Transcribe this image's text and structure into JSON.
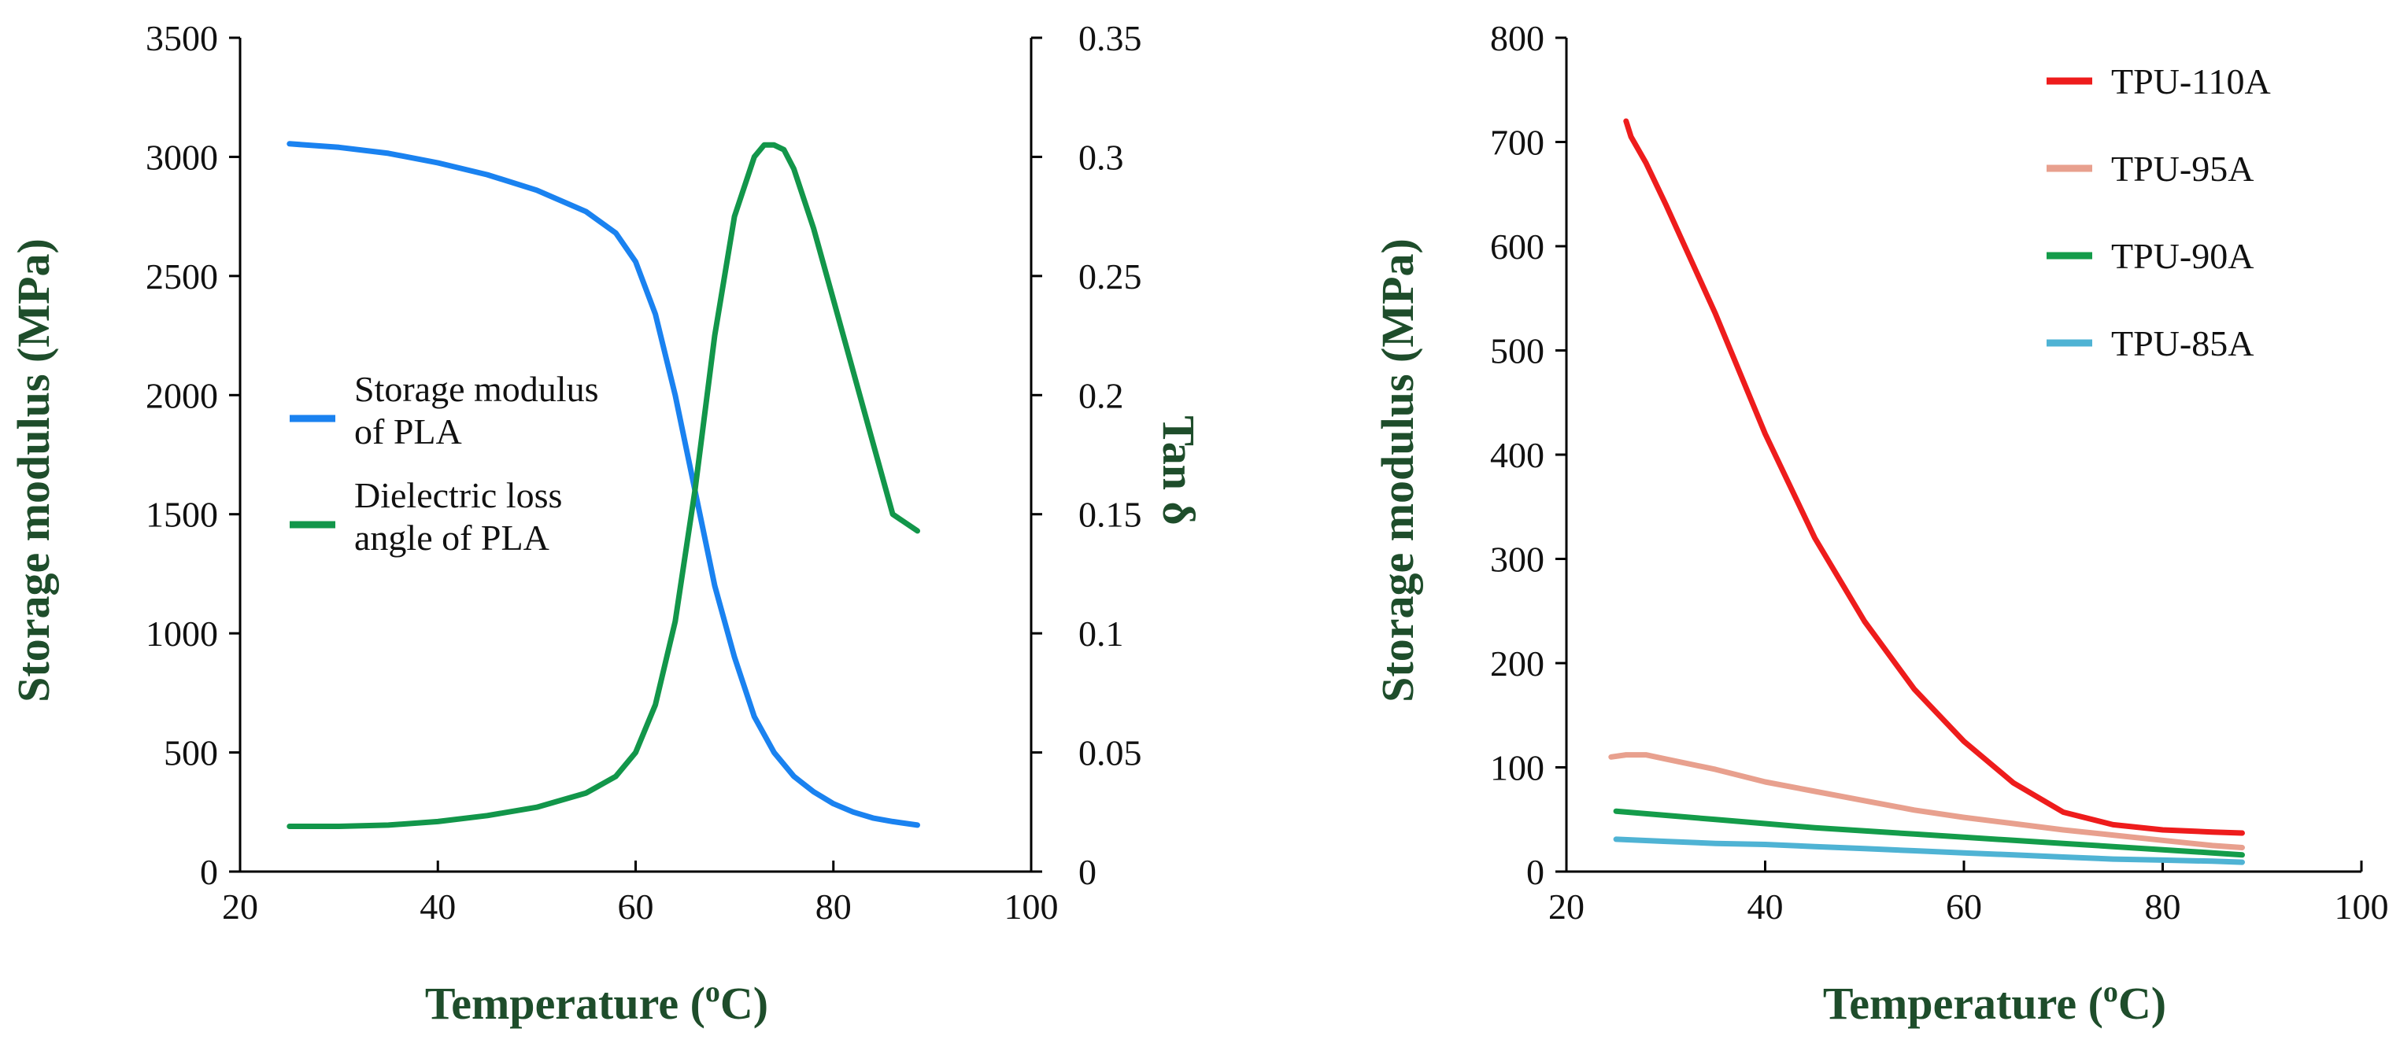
{
  "chart_data": [
    {
      "type": "line",
      "xlabel": "Temperature (oC)",
      "xlabel_main": "Temperature (",
      "xlabel_sup": "o",
      "xlabel_tail": "C)",
      "ylabel": "Storage modulus (MPa)",
      "y2label": "Tan δ",
      "xlim": [
        20,
        100
      ],
      "ylim": [
        0,
        3500
      ],
      "y2lim": [
        0,
        0.35
      ],
      "x_ticks": [
        20,
        40,
        60,
        80,
        100
      ],
      "y_ticks": [
        0,
        500,
        1000,
        1500,
        2000,
        2500,
        3000,
        3500
      ],
      "y2_ticks": [
        0,
        0.05,
        0.1,
        0.15,
        0.2,
        0.25,
        0.3,
        0.35
      ],
      "legend_position": "center-left",
      "series": [
        {
          "name": "Storage modulus of PLA",
          "legend_lines": [
            "Storage modulus",
            "of PLA"
          ],
          "color": "#1a82f0",
          "axis": "left",
          "x": [
            25,
            30,
            35,
            40,
            45,
            50,
            55,
            58,
            60,
            62,
            64,
            66,
            68,
            70,
            72,
            74,
            76,
            78,
            80,
            82,
            84,
            86,
            88.5
          ],
          "y": [
            3055,
            3040,
            3015,
            2975,
            2925,
            2860,
            2770,
            2680,
            2560,
            2340,
            2000,
            1600,
            1200,
            900,
            650,
            500,
            400,
            335,
            285,
            250,
            225,
            210,
            195
          ]
        },
        {
          "name": "Dielectric loss angle of PLA",
          "legend_lines": [
            "Dielectric loss",
            "angle of PLA"
          ],
          "color": "#12964a",
          "axis": "right",
          "x": [
            25,
            30,
            35,
            40,
            45,
            50,
            55,
            58,
            60,
            62,
            64,
            66,
            68,
            70,
            72,
            73,
            74,
            75,
            76,
            78,
            80,
            82,
            84,
            86,
            88.5
          ],
          "y": [
            0.019,
            0.019,
            0.0195,
            0.021,
            0.0235,
            0.027,
            0.033,
            0.04,
            0.05,
            0.07,
            0.105,
            0.16,
            0.225,
            0.275,
            0.3,
            0.305,
            0.305,
            0.303,
            0.295,
            0.27,
            0.24,
            0.21,
            0.18,
            0.15,
            0.143
          ]
        }
      ]
    },
    {
      "type": "line",
      "xlabel": "Temperature (oC)",
      "xlabel_main": "Temperature (",
      "xlabel_sup": "o",
      "xlabel_tail": "C)",
      "ylabel": "Storage modulus (MPa)",
      "xlim": [
        20,
        100
      ],
      "ylim": [
        0,
        800
      ],
      "x_ticks": [
        20,
        40,
        60,
        80,
        100
      ],
      "y_ticks": [
        0,
        100,
        200,
        300,
        400,
        500,
        600,
        700,
        800
      ],
      "legend_position": "top-right",
      "series": [
        {
          "name": "TPU-110A",
          "color": "#ee1c1c",
          "x": [
            26,
            26.5,
            28,
            30,
            35,
            40,
            45,
            50,
            55,
            60,
            65,
            70,
            75,
            80,
            85,
            88
          ],
          "y": [
            720,
            705,
            680,
            640,
            535,
            420,
            320,
            240,
            175,
            125,
            85,
            57,
            45,
            40,
            38,
            37
          ]
        },
        {
          "name": "TPU-95A",
          "color": "#e8a08e",
          "x": [
            24.5,
            26,
            28,
            30,
            35,
            40,
            45,
            50,
            55,
            60,
            65,
            70,
            75,
            80,
            85,
            88
          ],
          "y": [
            110,
            112,
            112,
            108,
            98,
            86,
            77,
            68,
            59,
            52,
            46,
            40,
            35,
            30,
            25,
            23
          ]
        },
        {
          "name": "TPU-90A",
          "color": "#149c4a",
          "x": [
            25,
            30,
            35,
            40,
            45,
            50,
            55,
            60,
            65,
            70,
            75,
            80,
            85,
            88
          ],
          "y": [
            58,
            54,
            50,
            46,
            42,
            39,
            36,
            33,
            30,
            27,
            24,
            21,
            18,
            16
          ]
        },
        {
          "name": "TPU-85A",
          "color": "#4fb3d4",
          "x": [
            25,
            30,
            35,
            40,
            45,
            50,
            55,
            60,
            65,
            70,
            75,
            80,
            85,
            88
          ],
          "y": [
            31,
            29,
            27,
            26,
            24,
            22,
            20,
            18,
            16,
            14,
            12,
            11,
            10,
            9
          ]
        }
      ]
    }
  ]
}
